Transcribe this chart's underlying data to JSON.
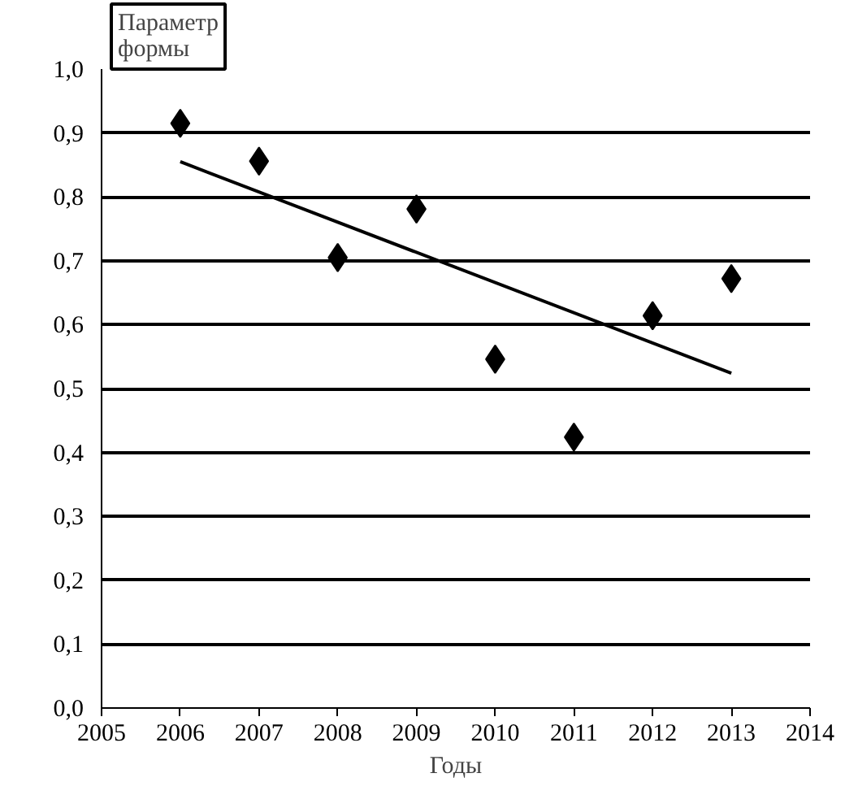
{
  "chart_data": {
    "type": "scatter",
    "ylabel": "Параметр\nформы",
    "xlabel": "Годы",
    "x": [
      2006,
      2007,
      2008,
      2009,
      2010,
      2011,
      2012,
      2013
    ],
    "series": [
      {
        "color": "#000000",
        "marker": "diamond",
        "values": [
          0.915,
          0.856,
          0.705,
          0.781,
          0.546,
          0.424,
          0.614,
          0.672
        ]
      },
      {
        "type": "line",
        "color": "#000000",
        "x": [
          2006,
          2013
        ],
        "values": [
          0.855,
          0.524
        ]
      }
    ],
    "xlim": [
      2005,
      2014
    ],
    "xticks": [
      2005,
      2006,
      2007,
      2008,
      2009,
      2010,
      2011,
      2012,
      2013,
      2014
    ],
    "ylim": [
      0,
      1
    ],
    "yticks": [
      {
        "value": 0,
        "label": "0,0"
      },
      {
        "value": 0.1,
        "label": "0,1"
      },
      {
        "value": 0.2,
        "label": "0,2"
      },
      {
        "value": 0.3,
        "label": "0,3"
      },
      {
        "value": 0.4,
        "label": "0,4"
      },
      {
        "value": 0.5,
        "label": "0,5"
      },
      {
        "value": 0.6,
        "label": "0,6"
      },
      {
        "value": 0.7,
        "label": "0,7"
      },
      {
        "value": 0.8,
        "label": "0,8"
      },
      {
        "value": 0.9,
        "label": "0,9"
      },
      {
        "value": 1,
        "label": "1,0"
      }
    ],
    "grid": "y"
  }
}
